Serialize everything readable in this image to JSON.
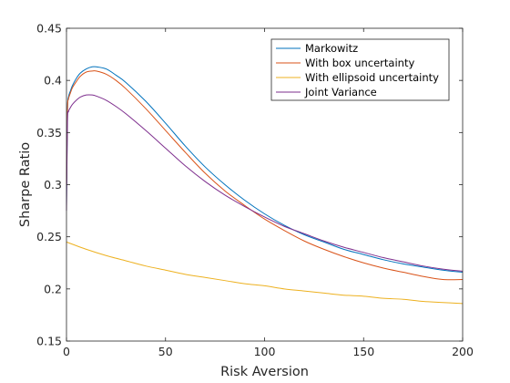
{
  "chart_data": {
    "type": "line",
    "title": "",
    "xlabel": "Risk Aversion",
    "ylabel": "Sharpe Ratio",
    "xlim": [
      0,
      200
    ],
    "ylim": [
      0.15,
      0.45
    ],
    "xticks": [
      0,
      50,
      100,
      150,
      200
    ],
    "yticks": [
      0.15,
      0.2,
      0.25,
      0.3,
      0.35,
      0.4,
      0.45
    ],
    "xtick_labels": [
      "0",
      "50",
      "100",
      "150",
      "200"
    ],
    "ytick_labels": [
      "0.15",
      "0.2",
      "0.25",
      "0.3",
      "0.35",
      "0.4",
      "0.45"
    ],
    "grid": false,
    "legend_position": "top-right",
    "series": [
      {
        "name": "Markowitz",
        "color": "#0072BD",
        "x": [
          0,
          0.5,
          1,
          2,
          3,
          5,
          7,
          10,
          13,
          15,
          20,
          25,
          30,
          40,
          50,
          60,
          70,
          80,
          90,
          100,
          110,
          120,
          130,
          140,
          150,
          160,
          170,
          180,
          190,
          200
        ],
        "y": [
          0.28,
          0.37,
          0.384,
          0.39,
          0.395,
          0.402,
          0.407,
          0.411,
          0.413,
          0.413,
          0.411,
          0.405,
          0.398,
          0.38,
          0.359,
          0.337,
          0.317,
          0.3,
          0.285,
          0.272,
          0.261,
          0.252,
          0.245,
          0.238,
          0.233,
          0.228,
          0.224,
          0.221,
          0.218,
          0.216
        ]
      },
      {
        "name": "With box uncertainty",
        "color": "#D95319",
        "x": [
          0,
          0.5,
          1,
          2,
          3,
          5,
          7,
          10,
          13,
          15,
          20,
          25,
          30,
          40,
          50,
          60,
          70,
          80,
          90,
          100,
          110,
          120,
          130,
          140,
          150,
          160,
          170,
          180,
          190,
          200
        ],
        "y": [
          0.3,
          0.371,
          0.382,
          0.388,
          0.393,
          0.399,
          0.404,
          0.408,
          0.409,
          0.409,
          0.406,
          0.4,
          0.392,
          0.373,
          0.352,
          0.331,
          0.311,
          0.294,
          0.28,
          0.267,
          0.256,
          0.246,
          0.238,
          0.231,
          0.225,
          0.22,
          0.216,
          0.212,
          0.209,
          0.209
        ]
      },
      {
        "name": "With ellipsoid uncertainty",
        "color": "#EDB120",
        "x": [
          0,
          10,
          20,
          30,
          40,
          50,
          60,
          70,
          80,
          90,
          100,
          110,
          120,
          130,
          140,
          150,
          160,
          170,
          180,
          190,
          200
        ],
        "y": [
          0.245,
          0.238,
          0.232,
          0.227,
          0.222,
          0.218,
          0.214,
          0.211,
          0.208,
          0.205,
          0.203,
          0.2,
          0.198,
          0.196,
          0.194,
          0.193,
          0.191,
          0.19,
          0.188,
          0.187,
          0.186
        ]
      },
      {
        "name": "Joint Variance",
        "color": "#7E2F8E",
        "x": [
          0,
          0.5,
          1,
          2,
          3,
          5,
          7,
          10,
          13,
          15,
          20,
          25,
          30,
          40,
          50,
          60,
          70,
          80,
          90,
          100,
          110,
          120,
          130,
          140,
          150,
          160,
          170,
          180,
          190,
          200
        ],
        "y": [
          0.275,
          0.36,
          0.37,
          0.374,
          0.377,
          0.381,
          0.384,
          0.386,
          0.386,
          0.385,
          0.381,
          0.375,
          0.368,
          0.352,
          0.335,
          0.318,
          0.303,
          0.29,
          0.279,
          0.269,
          0.26,
          0.253,
          0.246,
          0.24,
          0.235,
          0.23,
          0.226,
          0.222,
          0.219,
          0.217
        ]
      }
    ]
  }
}
